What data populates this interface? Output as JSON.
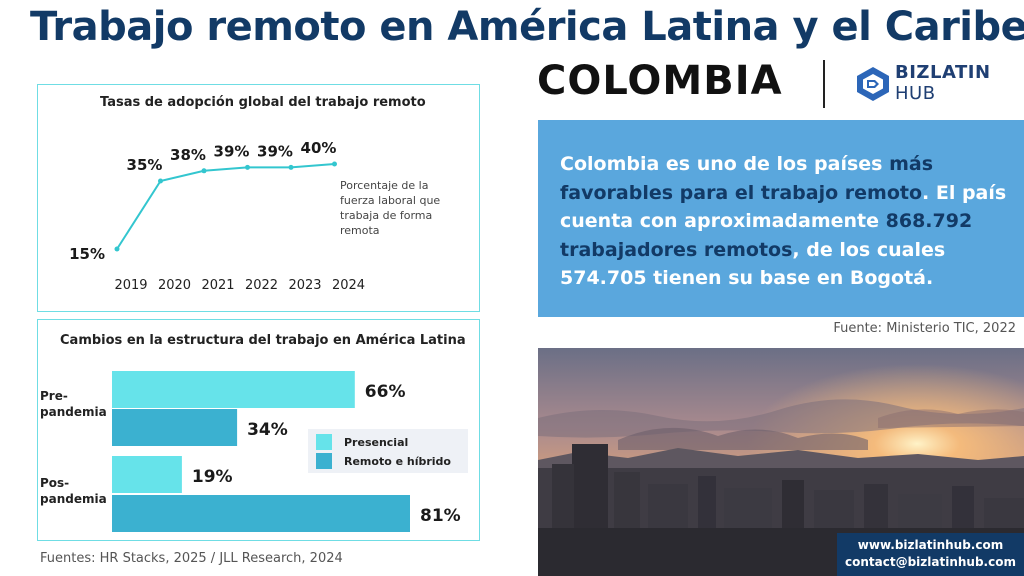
{
  "header": {
    "title": "Trabajo remoto en América Latina y el Caribe:",
    "country": "COLOMBIA",
    "logo_line1": "BIZLATIN",
    "logo_line2": "HUB"
  },
  "colors": {
    "title": "#123a66",
    "accent_teal": "#33c6cf",
    "presencial": "#66e3ea",
    "remoto": "#3bb1d0",
    "blue_box": "#5aa7dd"
  },
  "panel_adoption": {
    "title": "Tasas de adopción global del trabajo remoto",
    "note": "Porcentaje de la fuerza laboral que trabaja de forma remota"
  },
  "panel_structure": {
    "title": "Cambios en la estructura del trabajo en América Latina",
    "category_labels": [
      "Pre-\npandemia",
      "Pos-\npandemia"
    ],
    "legend": [
      "Presencial",
      "Remoto e híbrido"
    ]
  },
  "chart_data": [
    {
      "type": "line",
      "title": "Tasas de adopción global del trabajo remoto",
      "x": [
        "2019",
        "2020",
        "2021",
        "2022",
        "2023",
        "2024"
      ],
      "values": [
        15,
        35,
        38,
        39,
        39,
        40
      ],
      "value_labels": [
        "15%",
        "35%",
        "38%",
        "39%",
        "39%",
        "40%"
      ],
      "ylim": [
        15,
        40
      ],
      "grid": false
    },
    {
      "type": "bar",
      "orientation": "horizontal",
      "title": "Cambios en la estructura del trabajo en América Latina",
      "categories": [
        "Pre-pandemia",
        "Pos-pandemia"
      ],
      "series": [
        {
          "name": "Presencial",
          "values": [
            66,
            19
          ],
          "labels": [
            "66%",
            "19%"
          ]
        },
        {
          "name": "Remoto e híbrido",
          "values": [
            34,
            81
          ],
          "labels": [
            "34%",
            "81%"
          ]
        }
      ],
      "xlim": [
        0,
        81
      ],
      "legend": "right"
    }
  ],
  "sources": {
    "left": "Fuentes: HR Stacks, 2025 / JLL Research, 2024",
    "right": "Fuente: Ministerio TIC, 2022"
  },
  "callout": {
    "p1": "Colombia es uno de los países ",
    "p2": "más favorables para el trabajo remoto",
    "p3": ". El país cuenta con aproximadamente ",
    "p4": "868.792 trabajadores remotos",
    "p5": ", de los cuales 574.705 tienen su base en Bogotá."
  },
  "contact": {
    "web": "www.bizlatinhub.com",
    "email": "contact@bizlatinhub.com"
  }
}
